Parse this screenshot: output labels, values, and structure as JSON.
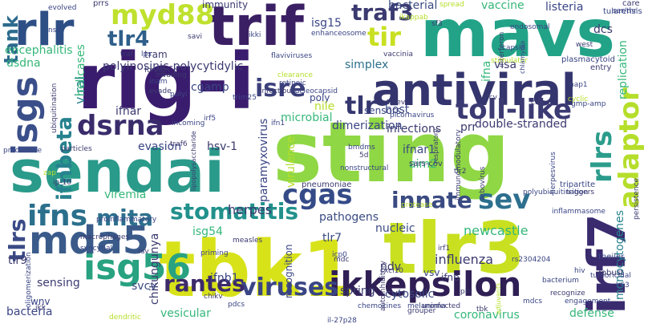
{
  "palette": {
    "purple": "#46337e",
    "deep": "#440154",
    "indigo": "#3b528b",
    "blue": "#31688e",
    "teal": "#26828e",
    "sea": "#21918c",
    "green": "#35b779",
    "lime": "#6ece58",
    "yellowgreen": "#b5de2b",
    "yellow": "#fde725"
  },
  "words": [
    "rig-i",
    "sting",
    "sendai",
    "tbk1",
    "tlr3",
    "mavs",
    "trif",
    "antiviral",
    "irf7",
    "rlr",
    "ikkepsilon",
    "isg56",
    "mda5",
    "ifns",
    "isgs",
    "myd88",
    "dsrna",
    "cgas",
    "sev",
    "toll-like",
    "stomatitis",
    "innate",
    "rlrs",
    "adaptor",
    "tlr",
    "isre",
    "viruses",
    "rantes",
    "mita",
    "ifnbeta",
    "tank",
    "traf3",
    "tir",
    "tlr4",
    "tlrs",
    "polyinosinic-polycytidylic",
    "isg15",
    "simplex",
    "bacterial",
    "encephalitis",
    "viral",
    "herpes",
    "nucleic",
    "influenza",
    "paramyxovirus",
    "chikungunya",
    "tlr7",
    "newcastle",
    "host",
    "infections",
    "cytosolic",
    "bacteria",
    "double-stranded",
    "recognition",
    "hsv-1",
    "ifnar1",
    "evasion",
    "spring",
    "vesicular",
    "defense",
    "coronavirus",
    "ifnb",
    "isg54",
    "pathogens",
    "monocytogenes",
    "ifnb1",
    "ifnar",
    "sensors",
    "sensing",
    "wnv",
    "tlr9",
    "svcv",
    "listeria",
    "vaccine",
    "dcs",
    "helicases",
    "dsdna",
    "immunity",
    "tularensis",
    "replication",
    "visa",
    "dimerization",
    "aim2",
    "prr",
    "microbial",
    "cgamp",
    "tram",
    "poly",
    "ndv",
    "vsv",
    "ifna",
    "nile",
    "virulence",
    "viremia",
    "tumoricidal",
    "robust",
    "theiler",
    "arbovirus",
    "herpesvirus",
    "interferon",
    "endosomal",
    "invading",
    "plasmacytoid",
    "entry",
    "stimulator",
    "flaviviruses",
    "pneumoniae",
    "inflammasome",
    "sars-cov",
    "tripartite",
    "triggers",
    "picornavirus",
    "macrophages",
    "proinflammatory",
    "persistence",
    "melanoma",
    "ubiquitination",
    "chemokines",
    "autoinhibitory",
    "polyubiquitination",
    "immunomodulatory",
    "oligomerization",
    "uninfected",
    "bacterium",
    "recognize",
    "engagement",
    "lipopolysaccharide",
    "nucleocapsid",
    "respiratory",
    "syncytial",
    "measles",
    "ns1",
    "prrs",
    "evolved",
    "traf",
    "lps",
    "savi",
    "ikki",
    "traf6",
    "irf5",
    "irf1",
    "bmdms",
    "5d",
    "k63",
    "hcv",
    "nap1",
    "cbp",
    "gmp-amp",
    "cxcl10",
    "il-27p28",
    "ip-10",
    "cyclic",
    "trim25",
    "foreign",
    "inam",
    "evade",
    "polyi",
    "west",
    "capsid",
    "vaccinia",
    "retinoic",
    "infectious",
    "clearance",
    "incoming",
    "tbk",
    "rs2304204",
    "grouper",
    "mdcs",
    "pkr",
    "icp0",
    "chikv",
    "pdcs",
    "rsv",
    "priming",
    "ikk",
    "dendritic",
    "enhanceosome",
    "mdc",
    "hiv",
    "tlr2",
    "ikappab",
    "chlamydia",
    "sf3",
    "zap",
    "productive",
    "particles",
    "adjuvants",
    "ser/thr",
    "spread",
    "care",
    "nonstructural",
    "tmev",
    "protease",
    "ifn1",
    "isg",
    "pattern",
    "irf",
    "tlrs2",
    "ubiquitin",
    "irf3"
  ]
}
